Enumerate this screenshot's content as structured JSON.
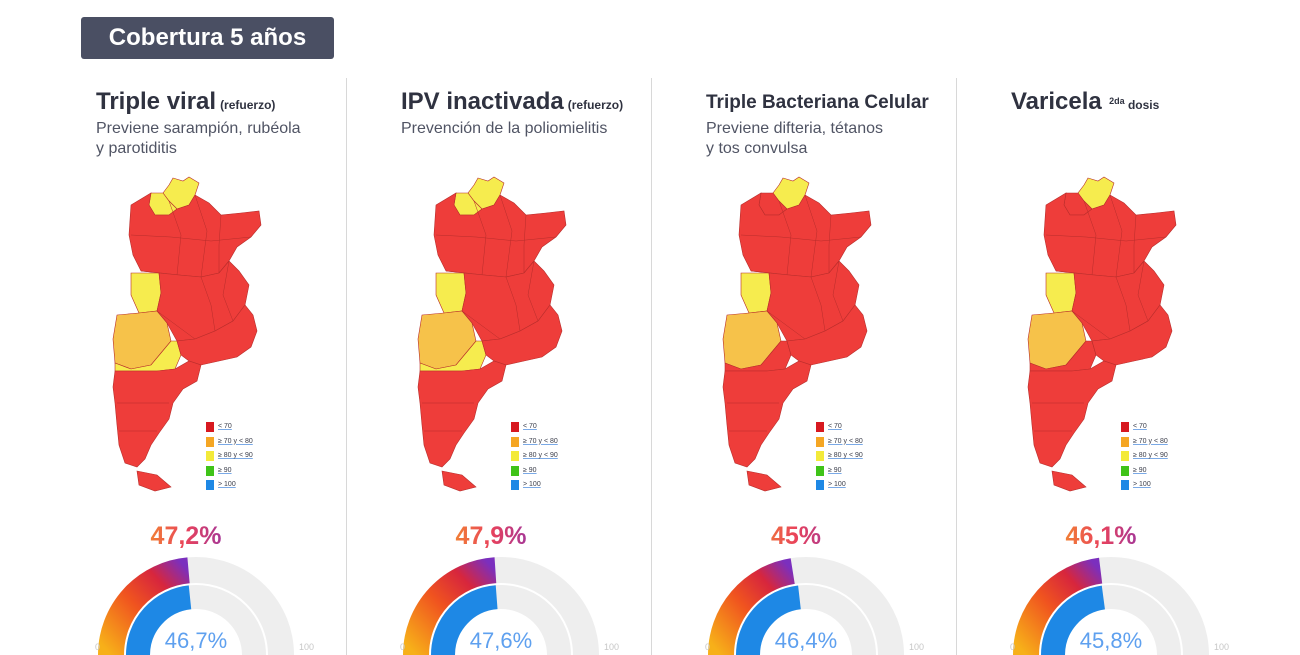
{
  "header": {
    "title": "Cobertura 5 años"
  },
  "legend": [
    {
      "label": "< 70",
      "color": "#d71920"
    },
    {
      "label": "≥ 70 y < 80",
      "color": "#f5a623"
    },
    {
      "label": "≥ 80 y < 90",
      "color": "#f3ea3a"
    },
    {
      "label": "≥ 90",
      "color": "#3fc318"
    },
    {
      "label": "> 100",
      "color": "#1e88e5"
    }
  ],
  "colors": {
    "red": "#ee3d3a",
    "yellow": "#f6ec4e",
    "light_orange": "#f6c24a",
    "border": "#b82d2b",
    "blue": "#1e88e5",
    "track": "#eeeeee"
  },
  "panels": [
    {
      "title": "Triple viral",
      "note": "(refuerzo)",
      "sup": "",
      "subtitle_lines": [
        "Previene sarampión, rubéola",
        "y parotiditis"
      ],
      "value_label": "47,2%",
      "inner_label": "46,7%",
      "tick_min": "0",
      "tick_max": "100",
      "coverage": 47.2,
      "inner_coverage": 46.7,
      "yellow_provinces": [
        "jujuy",
        "salta-west",
        "san-juan",
        "mendoza",
        "neuquen"
      ],
      "orange_provinces": [
        "mendoza"
      ]
    },
    {
      "title": "IPV inactivada",
      "note": "(refuerzo)",
      "sup": "",
      "subtitle_lines": [
        "Prevención de la poliomielitis"
      ],
      "value_label": "47,9%",
      "inner_label": "47,6%",
      "tick_min": "0",
      "tick_max": "100",
      "coverage": 47.9,
      "inner_coverage": 47.6,
      "yellow_provinces": [
        "jujuy",
        "salta-west",
        "san-juan",
        "mendoza",
        "neuquen"
      ],
      "orange_provinces": [
        "mendoza"
      ]
    },
    {
      "title": "Triple Bacteriana Celular",
      "note": "",
      "sup": "",
      "subtitle_lines": [
        "Previene difteria, tétanos",
        "y tos convulsa"
      ],
      "value_label": "45%",
      "inner_label": "46,4%",
      "tick_min": "0",
      "tick_max": "100",
      "coverage": 45,
      "inner_coverage": 46.4,
      "yellow_provinces": [
        "jujuy",
        "san-juan",
        "mendoza"
      ],
      "orange_provinces": [
        "mendoza"
      ]
    },
    {
      "title": "Varicela",
      "note": "dosis",
      "sup": "2da",
      "subtitle_lines": [],
      "value_label": "46,1%",
      "inner_label": "45,8%",
      "tick_min": "0",
      "tick_max": "100",
      "coverage": 46.1,
      "inner_coverage": 45.8,
      "yellow_provinces": [
        "jujuy",
        "san-juan",
        "mendoza"
      ],
      "orange_provinces": [
        "mendoza"
      ]
    }
  ],
  "chart_data": [
    {
      "type": "gauge",
      "title": "Triple viral (refuerzo)",
      "values": [
        47.2,
        46.7
      ],
      "ylim": [
        0,
        100
      ]
    },
    {
      "type": "gauge",
      "title": "IPV inactivada (refuerzo)",
      "values": [
        47.9,
        47.6
      ],
      "ylim": [
        0,
        100
      ]
    },
    {
      "type": "gauge",
      "title": "Triple Bacteriana Celular",
      "values": [
        45,
        46.4
      ],
      "ylim": [
        0,
        100
      ]
    },
    {
      "type": "gauge",
      "title": "Varicela 2da dosis",
      "values": [
        46.1,
        45.8
      ],
      "ylim": [
        0,
        100
      ]
    }
  ]
}
